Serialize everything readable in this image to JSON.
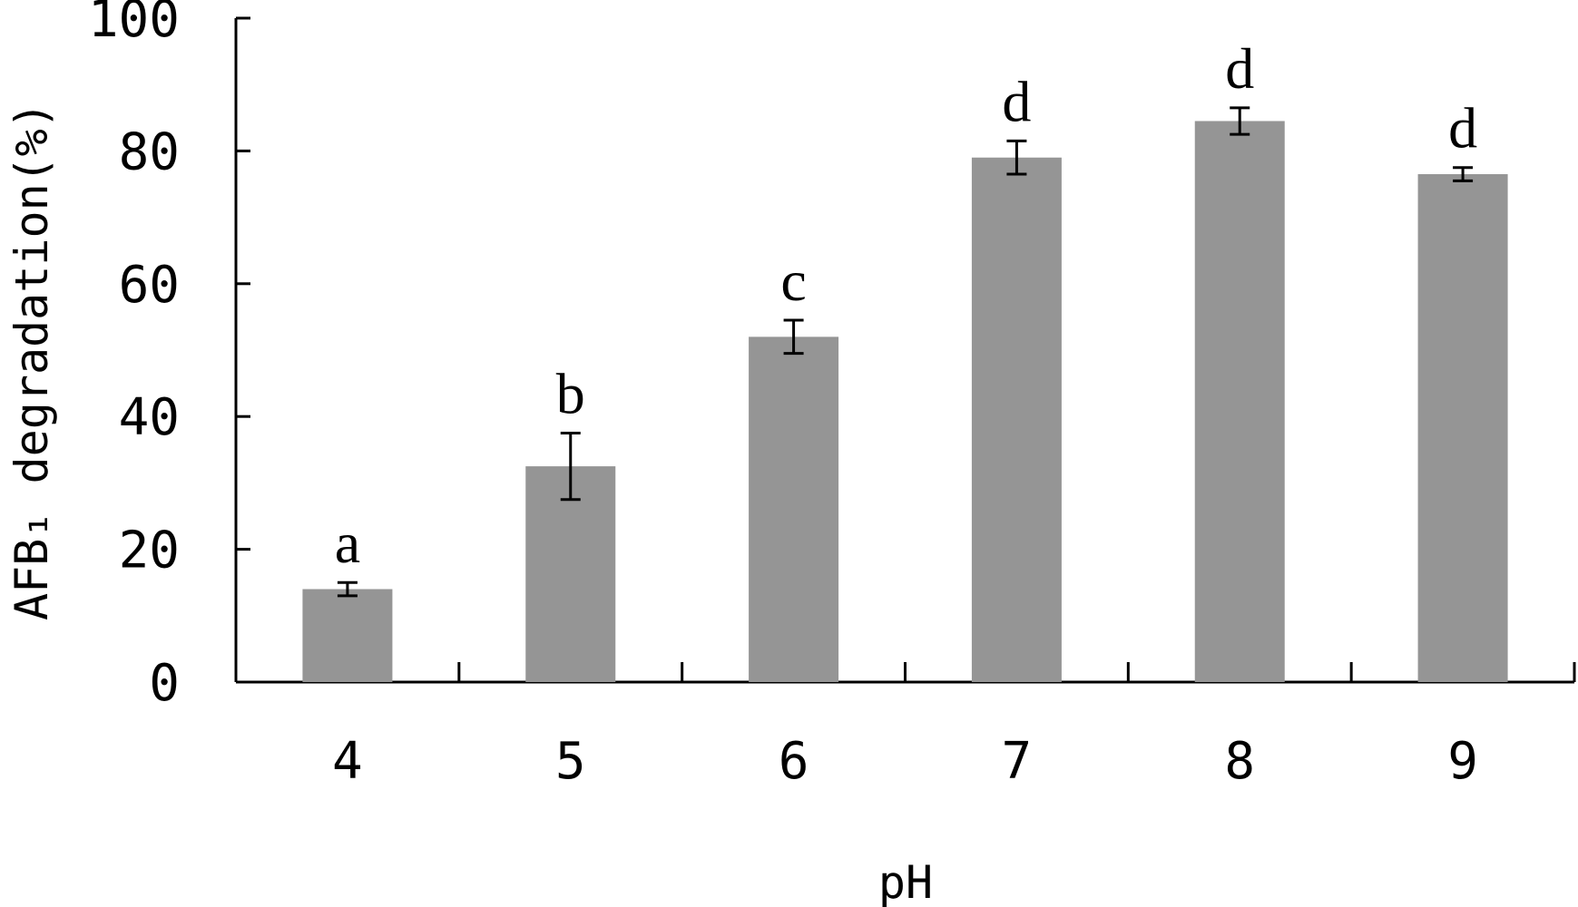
{
  "chart_data": {
    "type": "bar",
    "categories": [
      "4",
      "5",
      "6",
      "7",
      "8",
      "9"
    ],
    "series": [
      {
        "values": [
          14,
          32.5,
          52,
          79,
          84.5,
          76.5
        ],
        "error": [
          1,
          5,
          2.5,
          2.5,
          2,
          1
        ],
        "significance": [
          "a",
          "b",
          "c",
          "d",
          "d",
          "d"
        ]
      }
    ],
    "xlabel": "pH",
    "ylabel": "AFB₁ degradation(%)",
    "ylim": [
      0,
      100
    ],
    "yticks": [
      "0",
      "20",
      "40",
      "60",
      "80",
      "100"
    ],
    "grid": false,
    "legend": "none",
    "colors": {
      "bar": "#959595",
      "axis": "#000000"
    }
  }
}
